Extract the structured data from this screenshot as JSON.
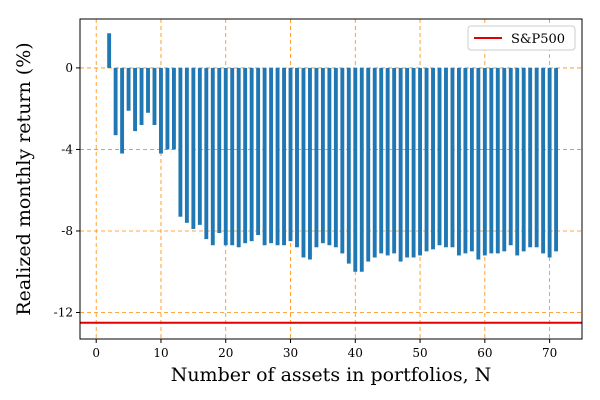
{
  "chart_data": {
    "type": "bar",
    "xlabel": "Number of assets in portfolios, N",
    "ylabel": "Realized monthly return (%)",
    "xlim": [
      -2.5,
      75
    ],
    "ylim": [
      -13.3,
      2.4
    ],
    "xticks": [
      0,
      10,
      20,
      30,
      40,
      50,
      60,
      70
    ],
    "yticks": [
      0,
      -4,
      -8,
      -12
    ],
    "grid": true,
    "grid_style": "dashed",
    "grid_color": "#ff8c00",
    "bar_color": "#1f77b4",
    "x": [
      2,
      3,
      4,
      5,
      6,
      7,
      8,
      9,
      10,
      11,
      12,
      13,
      14,
      15,
      16,
      17,
      18,
      19,
      20,
      21,
      22,
      23,
      24,
      25,
      26,
      27,
      28,
      29,
      30,
      31,
      32,
      33,
      34,
      35,
      36,
      37,
      38,
      39,
      40,
      41,
      42,
      43,
      44,
      45,
      46,
      47,
      48,
      49,
      50,
      51,
      52,
      53,
      54,
      55,
      56,
      57,
      58,
      59,
      60,
      61,
      62,
      63,
      64,
      65,
      66,
      67,
      68,
      69,
      70,
      71
    ],
    "values": [
      1.7,
      -3.3,
      -4.2,
      -2.1,
      -3.1,
      -2.8,
      -2.2,
      -2.8,
      -4.2,
      -4.0,
      -4.0,
      -7.3,
      -7.6,
      -7.9,
      -7.7,
      -8.4,
      -8.7,
      -8.1,
      -8.7,
      -8.7,
      -8.8,
      -8.6,
      -8.5,
      -8.2,
      -8.7,
      -8.6,
      -8.7,
      -8.7,
      -8.5,
      -8.8,
      -9.3,
      -9.4,
      -8.8,
      -8.6,
      -8.7,
      -8.8,
      -9.1,
      -9.6,
      -10.0,
      -10.0,
      -9.5,
      -9.3,
      -9.1,
      -9.2,
      -9.1,
      -9.5,
      -9.3,
      -9.3,
      -9.2,
      -9.0,
      -8.9,
      -8.7,
      -8.8,
      -8.8,
      -9.2,
      -9.1,
      -9.0,
      -9.4,
      -9.2,
      -9.1,
      -9.1,
      -9.0,
      -8.7,
      -9.2,
      -9.0,
      -8.8,
      -8.8,
      -9.1,
      -9.3,
      -9.0
    ],
    "reference_line": {
      "name": "S&P500",
      "value": -12.5,
      "color": "#e00000"
    },
    "legend": {
      "position": "top-right",
      "label": "S&P500"
    }
  }
}
